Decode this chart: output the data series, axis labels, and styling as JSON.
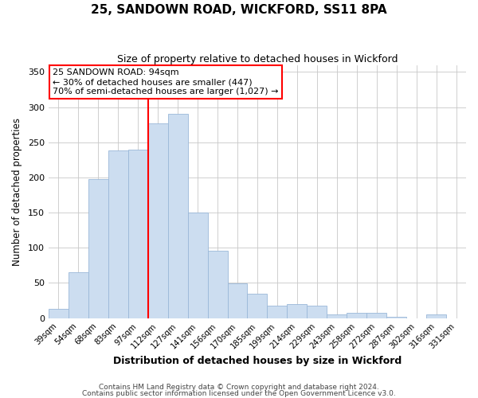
{
  "title": "25, SANDOWN ROAD, WICKFORD, SS11 8PA",
  "subtitle": "Size of property relative to detached houses in Wickford",
  "xlabel": "Distribution of detached houses by size in Wickford",
  "ylabel": "Number of detached properties",
  "footnote1": "Contains HM Land Registry data © Crown copyright and database right 2024.",
  "footnote2": "Contains public sector information licensed under the Open Government Licence v3.0.",
  "bar_color": "#ccddf0",
  "bar_edgecolor": "#9ab8d8",
  "vline_color": "red",
  "vline_index": 4,
  "annotation_title": "25 SANDOWN ROAD: 94sqm",
  "annotation_line1": "← 30% of detached houses are smaller (447)",
  "annotation_line2": "70% of semi-detached houses are larger (1,027) →",
  "annotation_box_edgecolor": "red",
  "categories": [
    "39sqm",
    "54sqm",
    "68sqm",
    "83sqm",
    "97sqm",
    "112sqm",
    "127sqm",
    "141sqm",
    "156sqm",
    "170sqm",
    "185sqm",
    "199sqm",
    "214sqm",
    "229sqm",
    "243sqm",
    "258sqm",
    "272sqm",
    "287sqm",
    "302sqm",
    "316sqm",
    "331sqm"
  ],
  "values": [
    13,
    65,
    198,
    238,
    240,
    277,
    290,
    150,
    96,
    49,
    35,
    18,
    20,
    18,
    5,
    8,
    8,
    2,
    0,
    5,
    0
  ],
  "ylim": [
    0,
    360
  ],
  "yticks": [
    0,
    50,
    100,
    150,
    200,
    250,
    300,
    350
  ],
  "figsize": [
    6.0,
    5.0
  ],
  "dpi": 100
}
